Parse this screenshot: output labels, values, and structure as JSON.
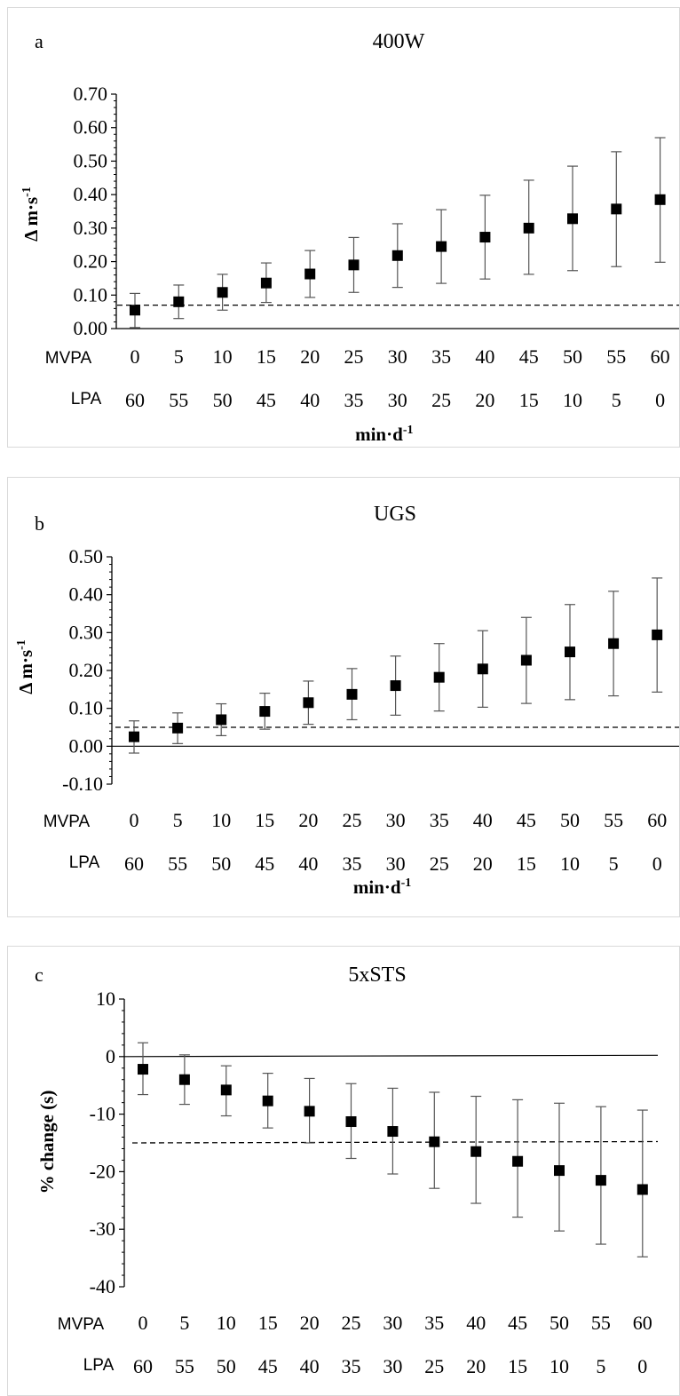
{
  "chart_data": [
    {
      "type": "scatter",
      "panel_label": "a",
      "title": "400W",
      "ylabel_main": "Δ m·s",
      "ylabel_sup": "-1",
      "ylim": [
        0,
        0.7
      ],
      "yticks": [
        "0.00",
        "0.10",
        "0.20",
        "0.30",
        "0.40",
        "0.50",
        "0.60",
        "0.70"
      ],
      "ytick_values": [
        0,
        0.1,
        0.2,
        0.3,
        0.4,
        0.5,
        0.6,
        0.7
      ],
      "row1_label": "MVPA",
      "row1": [
        "0",
        "5",
        "10",
        "15",
        "20",
        "25",
        "30",
        "35",
        "40",
        "45",
        "50",
        "55",
        "60"
      ],
      "row2_label": "LPA",
      "row2": [
        "60",
        "55",
        "50",
        "45",
        "40",
        "35",
        "30",
        "25",
        "20",
        "15",
        "10",
        "5",
        "0"
      ],
      "xlabel_main": "min·d",
      "xlabel_sup": "-1",
      "values": [
        0.055,
        0.08,
        0.108,
        0.136,
        0.163,
        0.19,
        0.218,
        0.245,
        0.273,
        0.3,
        0.328,
        0.357,
        0.385
      ],
      "lower": [
        0.003,
        0.03,
        0.055,
        0.078,
        0.093,
        0.108,
        0.123,
        0.135,
        0.148,
        0.162,
        0.173,
        0.185,
        0.198
      ],
      "upper": [
        0.105,
        0.13,
        0.162,
        0.196,
        0.233,
        0.272,
        0.313,
        0.355,
        0.398,
        0.443,
        0.485,
        0.528,
        0.57
      ],
      "reference_line": 0.07,
      "zero_line": 0
    },
    {
      "type": "scatter",
      "panel_label": "b",
      "title": "UGS",
      "ylabel_main": "Δ m·s",
      "ylabel_sup": "-1",
      "ylim": [
        -0.1,
        0.5
      ],
      "yticks": [
        "-0.10",
        "0.00",
        "0.10",
        "0.20",
        "0.30",
        "0.40",
        "0.50"
      ],
      "ytick_values": [
        -0.1,
        0,
        0.1,
        0.2,
        0.3,
        0.4,
        0.5
      ],
      "row1_label": "MVPA",
      "row1": [
        "0",
        "5",
        "10",
        "15",
        "20",
        "25",
        "30",
        "35",
        "40",
        "45",
        "50",
        "55",
        "60"
      ],
      "row2_label": "LPA",
      "row2": [
        "60",
        "55",
        "50",
        "45",
        "40",
        "35",
        "30",
        "25",
        "20",
        "15",
        "10",
        "5",
        "0"
      ],
      "xlabel_main": "min·d",
      "xlabel_sup": "-1",
      "values": [
        0.025,
        0.048,
        0.07,
        0.092,
        0.115,
        0.137,
        0.16,
        0.182,
        0.204,
        0.227,
        0.249,
        0.271,
        0.294
      ],
      "lower": [
        -0.018,
        0.007,
        0.028,
        0.045,
        0.058,
        0.07,
        0.082,
        0.093,
        0.103,
        0.113,
        0.123,
        0.133,
        0.143
      ],
      "upper": [
        0.067,
        0.088,
        0.112,
        0.14,
        0.172,
        0.205,
        0.238,
        0.271,
        0.305,
        0.34,
        0.374,
        0.409,
        0.444
      ],
      "reference_line": 0.05,
      "zero_line": 0
    },
    {
      "type": "scatter",
      "panel_label": "c",
      "title": "5xSTS",
      "ylabel_main": "% change (s)",
      "ylabel_sup": "",
      "ylim": [
        -40,
        10
      ],
      "yticks": [
        "10",
        "0",
        "-10",
        "-20",
        "-30",
        "-40"
      ],
      "ytick_values": [
        10,
        0,
        -10,
        -20,
        -30,
        -40
      ],
      "row1_label": "MVPA",
      "row1": [
        "0",
        "5",
        "10",
        "15",
        "20",
        "25",
        "30",
        "35",
        "40",
        "45",
        "50",
        "55",
        "60"
      ],
      "row2_label": "LPA",
      "row2": [
        "60",
        "55",
        "50",
        "45",
        "40",
        "35",
        "30",
        "25",
        "20",
        "15",
        "10",
        "5",
        "0"
      ],
      "xlabel_main": "min·d",
      "xlabel_sup": "-1",
      "values": [
        -2.2,
        -4.0,
        -5.8,
        -7.7,
        -9.5,
        -11.3,
        -13.0,
        -14.8,
        -16.5,
        -18.2,
        -19.8,
        -21.5,
        -23.1
      ],
      "lower": [
        -6.6,
        -8.3,
        -10.3,
        -12.4,
        -15.0,
        -17.7,
        -20.4,
        -22.9,
        -25.5,
        -27.9,
        -30.3,
        -32.6,
        -34.8
      ],
      "upper": [
        2.4,
        0.3,
        -1.6,
        -2.9,
        -3.8,
        -4.7,
        -5.5,
        -6.2,
        -6.9,
        -7.5,
        -8.1,
        -8.7,
        -9.3
      ],
      "reference_line": -15,
      "zero_line": 0
    }
  ]
}
